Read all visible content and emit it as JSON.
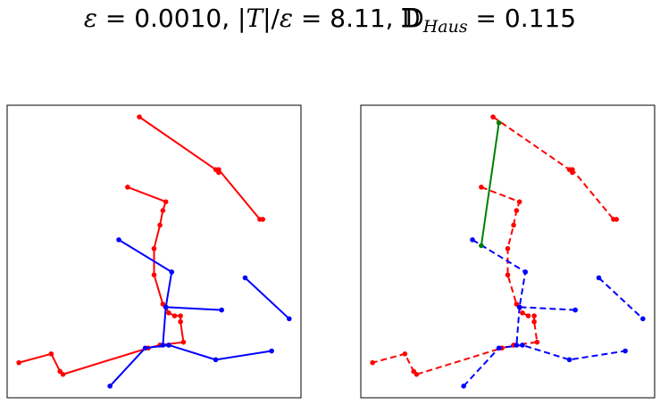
{
  "title": {
    "eps_symbol": "ε",
    "eps_value": "0.0010",
    "ratio_value": "8.11",
    "haus_symbol": "𝔻",
    "haus_sub": "Haus",
    "haus_value": "0.115"
  },
  "colors": {
    "red": "#ff0000",
    "blue": "#0000ff",
    "green": "#008000"
  },
  "chart_data": [
    {
      "type": "line",
      "panel": "left",
      "xlim": [
        0,
        1
      ],
      "ylim": [
        0,
        1
      ],
      "grid": false,
      "series": [
        {
          "color": "red",
          "style": "solid",
          "points": [
            [
              0.45,
              0.96
            ],
            [
              0.71,
              0.78
            ],
            [
              0.72,
              0.77
            ],
            [
              0.72,
              0.78
            ],
            [
              0.86,
              0.61
            ],
            [
              0.87,
              0.61
            ]
          ]
        },
        {
          "color": "red",
          "style": "solid",
          "points": [
            [
              0.41,
              0.72
            ],
            [
              0.54,
              0.67
            ],
            [
              0.53,
              0.64
            ],
            [
              0.52,
              0.59
            ],
            [
              0.5,
              0.51
            ],
            [
              0.5,
              0.42
            ],
            [
              0.53,
              0.32
            ],
            [
              0.54,
              0.31
            ],
            [
              0.55,
              0.29
            ],
            [
              0.57,
              0.28
            ],
            [
              0.59,
              0.28
            ],
            [
              0.59,
              0.26
            ],
            [
              0.6,
              0.19
            ],
            [
              0.52,
              0.18
            ],
            [
              0.48,
              0.17
            ],
            [
              0.19,
              0.08
            ],
            [
              0.18,
              0.09
            ],
            [
              0.15,
              0.15
            ],
            [
              0.04,
              0.12
            ]
          ]
        },
        {
          "color": "blue",
          "style": "solid",
          "points": [
            [
              0.38,
              0.54
            ],
            [
              0.56,
              0.43
            ],
            [
              0.54,
              0.31
            ],
            [
              0.73,
              0.3
            ]
          ]
        },
        {
          "color": "blue",
          "style": "solid",
          "points": [
            [
              0.81,
              0.41
            ],
            [
              0.96,
              0.27
            ]
          ]
        },
        {
          "color": "blue",
          "style": "solid",
          "points": [
            [
              0.35,
              0.04
            ],
            [
              0.47,
              0.17
            ],
            [
              0.55,
              0.18
            ],
            [
              0.71,
              0.13
            ],
            [
              0.9,
              0.16
            ]
          ]
        },
        {
          "color": "blue",
          "style": "solid",
          "points": [
            [
              0.54,
              0.31
            ],
            [
              0.53,
              0.18
            ]
          ]
        }
      ]
    },
    {
      "type": "line",
      "panel": "right",
      "xlim": [
        0,
        1
      ],
      "ylim": [
        0,
        1
      ],
      "grid": false,
      "series": [
        {
          "color": "red",
          "style": "dashed",
          "points": [
            [
              0.45,
              0.96
            ],
            [
              0.71,
              0.78
            ],
            [
              0.72,
              0.77
            ],
            [
              0.72,
              0.78
            ],
            [
              0.86,
              0.61
            ],
            [
              0.87,
              0.61
            ]
          ]
        },
        {
          "color": "red",
          "style": "dashed",
          "points": [
            [
              0.41,
              0.72
            ],
            [
              0.54,
              0.67
            ],
            [
              0.53,
              0.64
            ],
            [
              0.52,
              0.59
            ],
            [
              0.5,
              0.51
            ],
            [
              0.5,
              0.42
            ],
            [
              0.53,
              0.32
            ],
            [
              0.54,
              0.31
            ],
            [
              0.55,
              0.29
            ],
            [
              0.57,
              0.28
            ],
            [
              0.59,
              0.28
            ],
            [
              0.59,
              0.26
            ],
            [
              0.6,
              0.19
            ],
            [
              0.52,
              0.18
            ],
            [
              0.48,
              0.17
            ],
            [
              0.19,
              0.08
            ],
            [
              0.18,
              0.09
            ],
            [
              0.15,
              0.15
            ],
            [
              0.04,
              0.12
            ]
          ]
        },
        {
          "color": "blue",
          "style": "dashed",
          "points": [
            [
              0.38,
              0.54
            ],
            [
              0.56,
              0.43
            ],
            [
              0.54,
              0.31
            ],
            [
              0.73,
              0.3
            ]
          ]
        },
        {
          "color": "blue",
          "style": "dashed",
          "points": [
            [
              0.81,
              0.41
            ],
            [
              0.96,
              0.27
            ]
          ]
        },
        {
          "color": "blue",
          "style": "dashed",
          "points": [
            [
              0.35,
              0.04
            ],
            [
              0.47,
              0.17
            ],
            [
              0.55,
              0.18
            ],
            [
              0.71,
              0.13
            ],
            [
              0.9,
              0.16
            ]
          ]
        },
        {
          "color": "blue",
          "style": "dashed",
          "points": [
            [
              0.54,
              0.31
            ],
            [
              0.53,
              0.18
            ]
          ]
        },
        {
          "color": "green",
          "style": "solid",
          "points": [
            [
              0.47,
              0.94
            ],
            [
              0.41,
              0.52
            ]
          ]
        }
      ]
    }
  ]
}
